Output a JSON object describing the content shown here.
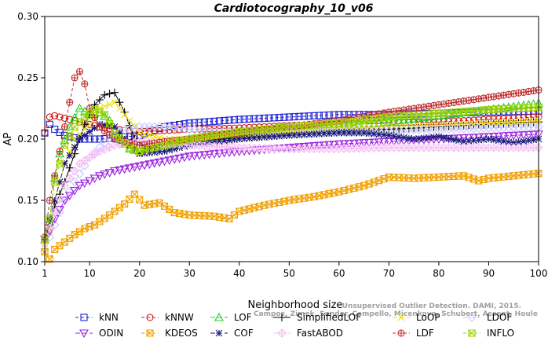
{
  "chart_data": {
    "type": "line",
    "title": "Cardiotocography_10_v06",
    "xlabel": "Neighborhood size",
    "ylabel": "AP",
    "xlim": [
      1,
      100
    ],
    "ylim": [
      0.1,
      0.3
    ],
    "xticks": [
      1,
      10,
      20,
      30,
      40,
      50,
      60,
      70,
      80,
      90,
      100
    ],
    "yticks": [
      "0.10",
      "0.15",
      "0.20",
      "0.25",
      "0.30"
    ],
    "grid": false,
    "legend_placement": "bottom",
    "watermark": [
      "Unsupervised Outlier Detection. DAMI, 2015.",
      "Campos, Zimek, Sander, Campello, Micenkova, Schubert, Assent, Houle"
    ],
    "series": [
      {
        "name": "kNN",
        "color": "#1f1fd6",
        "marker": "square",
        "dash": "4,3",
        "points": [
          [
            1,
            0.205
          ],
          [
            2,
            0.212
          ],
          [
            3,
            0.208
          ],
          [
            5,
            0.203
          ],
          [
            8,
            0.2
          ],
          [
            12,
            0.2
          ],
          [
            15,
            0.201
          ],
          [
            20,
            0.203
          ],
          [
            25,
            0.21
          ],
          [
            30,
            0.213
          ],
          [
            40,
            0.216
          ],
          [
            50,
            0.218
          ],
          [
            60,
            0.22
          ],
          [
            70,
            0.22
          ],
          [
            80,
            0.221
          ],
          [
            90,
            0.222
          ],
          [
            100,
            0.223
          ]
        ]
      },
      {
        "name": "kNNW",
        "color": "#d01515",
        "marker": "circle",
        "dash": "4,3",
        "points": [
          [
            1,
            0.205
          ],
          [
            2,
            0.218
          ],
          [
            3,
            0.219
          ],
          [
            5,
            0.217
          ],
          [
            8,
            0.214
          ],
          [
            12,
            0.21
          ],
          [
            15,
            0.208
          ],
          [
            20,
            0.206
          ],
          [
            25,
            0.207
          ],
          [
            30,
            0.208
          ],
          [
            40,
            0.209
          ],
          [
            50,
            0.211
          ],
          [
            60,
            0.212
          ],
          [
            70,
            0.213
          ],
          [
            80,
            0.214
          ],
          [
            90,
            0.216
          ],
          [
            100,
            0.218
          ]
        ]
      },
      {
        "name": "LOF",
        "color": "#1fcf1f",
        "marker": "triangle",
        "dash": "6,3",
        "points": [
          [
            1,
            0.118
          ],
          [
            2,
            0.135
          ],
          [
            3,
            0.168
          ],
          [
            4,
            0.188
          ],
          [
            6,
            0.21
          ],
          [
            8,
            0.225
          ],
          [
            10,
            0.22
          ],
          [
            12,
            0.222
          ],
          [
            14,
            0.215
          ],
          [
            16,
            0.2
          ],
          [
            18,
            0.192
          ],
          [
            20,
            0.19
          ],
          [
            25,
            0.195
          ],
          [
            30,
            0.2
          ],
          [
            40,
            0.205
          ],
          [
            50,
            0.208
          ],
          [
            60,
            0.21
          ],
          [
            70,
            0.214
          ],
          [
            80,
            0.219
          ],
          [
            90,
            0.224
          ],
          [
            100,
            0.229
          ]
        ]
      },
      {
        "name": "SimplifiedLOF",
        "color": "#000000",
        "marker": "plus",
        "dash": "0",
        "points": [
          [
            1,
            0.118
          ],
          [
            2,
            0.13
          ],
          [
            3,
            0.145
          ],
          [
            5,
            0.165
          ],
          [
            7,
            0.188
          ],
          [
            9,
            0.212
          ],
          [
            11,
            0.228
          ],
          [
            13,
            0.236
          ],
          [
            15,
            0.238
          ],
          [
            17,
            0.222
          ],
          [
            19,
            0.2
          ],
          [
            22,
            0.192
          ],
          [
            25,
            0.196
          ],
          [
            30,
            0.198
          ],
          [
            40,
            0.201
          ],
          [
            50,
            0.204
          ],
          [
            60,
            0.206
          ],
          [
            70,
            0.208
          ],
          [
            80,
            0.21
          ],
          [
            90,
            0.212
          ],
          [
            100,
            0.214
          ]
        ]
      },
      {
        "name": "LoOP",
        "color": "#f0e000",
        "marker": "x",
        "dash": "6,3",
        "points": [
          [
            1,
            0.115
          ],
          [
            2,
            0.125
          ],
          [
            3,
            0.15
          ],
          [
            5,
            0.18
          ],
          [
            7,
            0.2
          ],
          [
            10,
            0.212
          ],
          [
            12,
            0.225
          ],
          [
            15,
            0.23
          ],
          [
            18,
            0.215
          ],
          [
            20,
            0.205
          ],
          [
            25,
            0.2
          ],
          [
            30,
            0.2
          ],
          [
            40,
            0.203
          ],
          [
            50,
            0.206
          ],
          [
            60,
            0.209
          ],
          [
            70,
            0.21
          ],
          [
            80,
            0.211
          ],
          [
            90,
            0.213
          ],
          [
            100,
            0.215
          ]
        ]
      },
      {
        "name": "LDOF",
        "color": "#c8c8ff",
        "marker": "diamond",
        "dash": "6,3",
        "points": [
          [
            1,
            0.11
          ],
          [
            3,
            0.13
          ],
          [
            5,
            0.15
          ],
          [
            7,
            0.165
          ],
          [
            10,
            0.185
          ],
          [
            15,
            0.205
          ],
          [
            20,
            0.21
          ],
          [
            25,
            0.21
          ],
          [
            30,
            0.208
          ],
          [
            40,
            0.206
          ],
          [
            50,
            0.206
          ],
          [
            60,
            0.207
          ],
          [
            70,
            0.207
          ],
          [
            80,
            0.208
          ],
          [
            90,
            0.209
          ],
          [
            100,
            0.21
          ]
        ]
      },
      {
        "name": "ODIN",
        "color": "#9a1fe0",
        "marker": "triangle-down",
        "dash": "6,3",
        "points": [
          [
            1,
            0.118
          ],
          [
            2,
            0.125
          ],
          [
            3,
            0.135
          ],
          [
            5,
            0.15
          ],
          [
            8,
            0.162
          ],
          [
            10,
            0.166
          ],
          [
            12,
            0.17
          ],
          [
            15,
            0.174
          ],
          [
            20,
            0.178
          ],
          [
            25,
            0.182
          ],
          [
            30,
            0.186
          ],
          [
            40,
            0.19
          ],
          [
            50,
            0.193
          ],
          [
            60,
            0.196
          ],
          [
            70,
            0.198
          ],
          [
            80,
            0.2
          ],
          [
            90,
            0.202
          ],
          [
            100,
            0.204
          ]
        ]
      },
      {
        "name": "KDEOS",
        "color": "#f0a000",
        "marker": "square-x",
        "dash": "4,3",
        "points": [
          [
            1,
            0.108
          ],
          [
            2,
            0.102
          ],
          [
            3,
            0.11
          ],
          [
            5,
            0.116
          ],
          [
            7,
            0.122
          ],
          [
            9,
            0.127
          ],
          [
            11,
            0.13
          ],
          [
            14,
            0.138
          ],
          [
            17,
            0.147
          ],
          [
            19,
            0.155
          ],
          [
            21,
            0.146
          ],
          [
            24,
            0.148
          ],
          [
            27,
            0.14
          ],
          [
            30,
            0.138
          ],
          [
            35,
            0.137
          ],
          [
            38,
            0.135
          ],
          [
            40,
            0.141
          ],
          [
            45,
            0.146
          ],
          [
            50,
            0.15
          ],
          [
            55,
            0.153
          ],
          [
            60,
            0.157
          ],
          [
            65,
            0.162
          ],
          [
            70,
            0.169
          ],
          [
            75,
            0.168
          ],
          [
            80,
            0.169
          ],
          [
            85,
            0.17
          ],
          [
            88,
            0.166
          ],
          [
            90,
            0.168
          ],
          [
            95,
            0.17
          ],
          [
            100,
            0.172
          ]
        ]
      },
      {
        "name": "COF",
        "color": "#1a1a7a",
        "marker": "star",
        "dash": "6,3",
        "points": [
          [
            1,
            0.118
          ],
          [
            3,
            0.15
          ],
          [
            5,
            0.18
          ],
          [
            8,
            0.2
          ],
          [
            12,
            0.212
          ],
          [
            15,
            0.21
          ],
          [
            18,
            0.195
          ],
          [
            20,
            0.188
          ],
          [
            25,
            0.19
          ],
          [
            30,
            0.195
          ],
          [
            40,
            0.2
          ],
          [
            50,
            0.203
          ],
          [
            60,
            0.205
          ],
          [
            65,
            0.205
          ],
          [
            70,
            0.203
          ],
          [
            75,
            0.2
          ],
          [
            80,
            0.202
          ],
          [
            85,
            0.198
          ],
          [
            90,
            0.2
          ],
          [
            95,
            0.197
          ],
          [
            100,
            0.2
          ]
        ]
      },
      {
        "name": "FastABOD",
        "color": "#f5bff5",
        "marker": "diamond-plus",
        "dash": "6,3",
        "points": [
          [
            1,
            0.115
          ],
          [
            3,
            0.14
          ],
          [
            5,
            0.162
          ],
          [
            8,
            0.18
          ],
          [
            12,
            0.19
          ],
          [
            15,
            0.195
          ],
          [
            20,
            0.198
          ],
          [
            30,
            0.195
          ],
          [
            40,
            0.193
          ],
          [
            50,
            0.192
          ],
          [
            60,
            0.192
          ],
          [
            70,
            0.193
          ],
          [
            80,
            0.193
          ],
          [
            90,
            0.193
          ],
          [
            100,
            0.193
          ]
        ]
      },
      {
        "name": "LDF",
        "color": "#c03030",
        "marker": "circle-plus",
        "dash": "4,3",
        "points": [
          [
            1,
            0.12
          ],
          [
            2,
            0.15
          ],
          [
            3,
            0.17
          ],
          [
            4,
            0.19
          ],
          [
            5,
            0.21
          ],
          [
            6,
            0.23
          ],
          [
            7,
            0.25
          ],
          [
            8,
            0.255
          ],
          [
            9,
            0.245
          ],
          [
            10,
            0.225
          ],
          [
            12,
            0.21
          ],
          [
            15,
            0.2
          ],
          [
            20,
            0.195
          ],
          [
            25,
            0.198
          ],
          [
            30,
            0.2
          ],
          [
            40,
            0.205
          ],
          [
            50,
            0.21
          ],
          [
            60,
            0.215
          ],
          [
            70,
            0.222
          ],
          [
            80,
            0.228
          ],
          [
            90,
            0.234
          ],
          [
            100,
            0.24
          ]
        ]
      },
      {
        "name": "INFLO",
        "color": "#a0d000",
        "marker": "hourglass",
        "dash": "4,3",
        "points": [
          [
            1,
            0.118
          ],
          [
            2,
            0.135
          ],
          [
            3,
            0.165
          ],
          [
            5,
            0.195
          ],
          [
            7,
            0.21
          ],
          [
            9,
            0.218
          ],
          [
            11,
            0.224
          ],
          [
            13,
            0.22
          ],
          [
            15,
            0.205
          ],
          [
            18,
            0.193
          ],
          [
            20,
            0.19
          ],
          [
            25,
            0.195
          ],
          [
            30,
            0.2
          ],
          [
            40,
            0.206
          ],
          [
            50,
            0.21
          ],
          [
            60,
            0.213
          ],
          [
            70,
            0.218
          ],
          [
            80,
            0.221
          ],
          [
            90,
            0.224
          ],
          [
            100,
            0.226
          ]
        ]
      }
    ]
  }
}
